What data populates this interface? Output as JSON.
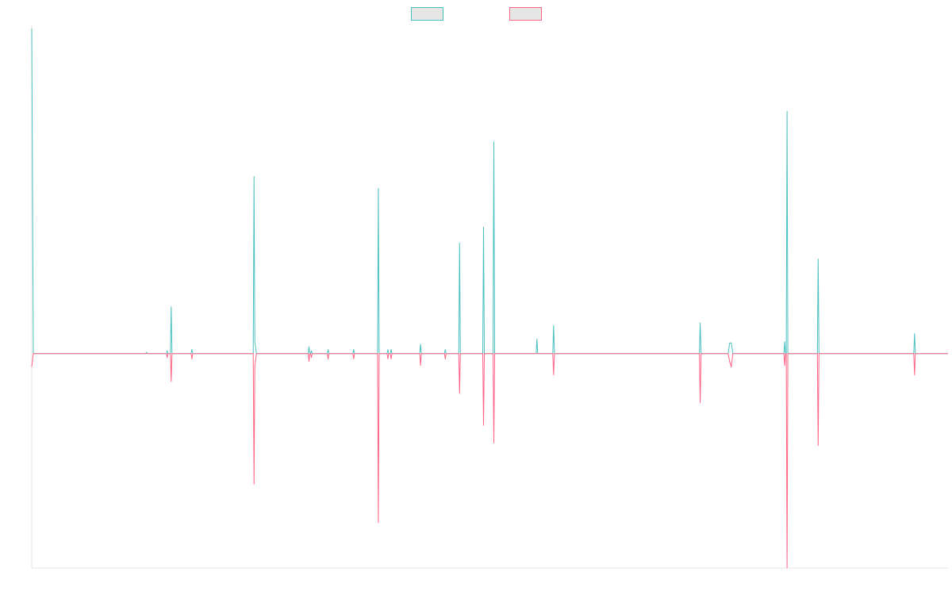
{
  "chart_data": {
    "type": "line",
    "title": "",
    "xlabel": "",
    "ylabel": "",
    "legend": {
      "placement": "top-center",
      "items": [
        {
          "name": "",
          "color": "#4bc0c0"
        },
        {
          "name": "",
          "color": "#ff6384"
        }
      ]
    },
    "grid": false,
    "x_range": [
      0,
      1150
    ],
    "ylim": [
      -160,
      245
    ],
    "colors": {
      "series_1": "#4bc0c0",
      "series_2": "#ff6384",
      "axis": "#e6e6e6",
      "legend_fill": "#e6e6e6"
    },
    "series": [
      {
        "name": "",
        "color": "#4bc0c0",
        "points": [
          [
            0,
            245
          ],
          [
            2,
            1
          ],
          [
            143,
            1
          ],
          [
            144,
            2
          ],
          [
            145,
            1
          ],
          [
            169,
            1
          ],
          [
            170,
            3
          ],
          [
            171,
            1
          ],
          [
            174,
            1
          ],
          [
            175,
            36
          ],
          [
            176,
            1
          ],
          [
            200,
            1
          ],
          [
            201,
            4
          ],
          [
            202,
            1
          ],
          [
            278,
            1
          ],
          [
            279,
            134
          ],
          [
            280,
            10
          ],
          [
            282,
            1
          ],
          [
            347,
            1
          ],
          [
            348,
            6
          ],
          [
            349,
            1
          ],
          [
            350,
            1
          ],
          [
            351,
            3
          ],
          [
            352,
            1
          ],
          [
            371,
            1
          ],
          [
            372,
            4
          ],
          [
            373,
            1
          ],
          [
            403,
            1
          ],
          [
            404,
            4
          ],
          [
            405,
            1
          ],
          [
            434,
            1
          ],
          [
            435,
            125
          ],
          [
            436,
            1
          ],
          [
            446,
            1
          ],
          [
            447,
            4
          ],
          [
            448,
            1
          ],
          [
            450,
            1
          ],
          [
            451,
            4
          ],
          [
            452,
            1
          ],
          [
            487,
            1
          ],
          [
            488,
            8
          ],
          [
            489,
            1
          ],
          [
            518,
            1
          ],
          [
            519,
            4
          ],
          [
            520,
            1
          ],
          [
            536,
            1
          ],
          [
            537,
            84
          ],
          [
            538,
            1
          ],
          [
            566,
            1
          ],
          [
            567,
            96
          ],
          [
            568,
            1
          ],
          [
            579,
            1
          ],
          [
            580,
            160
          ],
          [
            581,
            1
          ],
          [
            633,
            1
          ],
          [
            634,
            12
          ],
          [
            635,
            1
          ],
          [
            654,
            1
          ],
          [
            655,
            22
          ],
          [
            656,
            1
          ],
          [
            838,
            1
          ],
          [
            839,
            24
          ],
          [
            840,
            1
          ],
          [
            874,
            1
          ],
          [
            876,
            9
          ],
          [
            878,
            9
          ],
          [
            880,
            1
          ],
          [
            944,
            1
          ],
          [
            945,
            10
          ],
          [
            946,
            1
          ],
          [
            947,
            1
          ],
          [
            948,
            183
          ],
          [
            949,
            1
          ],
          [
            986,
            1
          ],
          [
            987,
            72
          ],
          [
            988,
            1
          ],
          [
            989,
            1
          ],
          [
            990,
            1
          ],
          [
            1107,
            1
          ],
          [
            1108,
            16
          ],
          [
            1109,
            1
          ],
          [
            1150,
            1
          ]
        ]
      },
      {
        "name": "",
        "color": "#ff6384",
        "points": [
          [
            0,
            -9
          ],
          [
            2,
            1
          ],
          [
            143,
            1
          ],
          [
            145,
            1
          ],
          [
            169,
            1
          ],
          [
            170,
            -2
          ],
          [
            171,
            1
          ],
          [
            174,
            1
          ],
          [
            175,
            -20
          ],
          [
            176,
            1
          ],
          [
            200,
            1
          ],
          [
            201,
            -3
          ],
          [
            202,
            1
          ],
          [
            278,
            1
          ],
          [
            279,
            -97
          ],
          [
            280,
            -8
          ],
          [
            282,
            1
          ],
          [
            347,
            1
          ],
          [
            348,
            -5
          ],
          [
            349,
            1
          ],
          [
            350,
            1
          ],
          [
            351,
            -2
          ],
          [
            352,
            1
          ],
          [
            371,
            1
          ],
          [
            372,
            -3
          ],
          [
            373,
            1
          ],
          [
            403,
            1
          ],
          [
            404,
            -3
          ],
          [
            405,
            1
          ],
          [
            434,
            1
          ],
          [
            435,
            -126
          ],
          [
            436,
            1
          ],
          [
            446,
            1
          ],
          [
            447,
            -3
          ],
          [
            448,
            1
          ],
          [
            450,
            1
          ],
          [
            451,
            -3
          ],
          [
            452,
            1
          ],
          [
            487,
            1
          ],
          [
            488,
            -8
          ],
          [
            489,
            1
          ],
          [
            518,
            1
          ],
          [
            519,
            -3
          ],
          [
            520,
            1
          ],
          [
            536,
            1
          ],
          [
            537,
            -29
          ],
          [
            538,
            1
          ],
          [
            566,
            1
          ],
          [
            567,
            -53
          ],
          [
            568,
            1
          ],
          [
            579,
            1
          ],
          [
            580,
            -66
          ],
          [
            581,
            1
          ],
          [
            633,
            1
          ],
          [
            635,
            1
          ],
          [
            654,
            1
          ],
          [
            655,
            -15
          ],
          [
            656,
            1
          ],
          [
            838,
            1
          ],
          [
            839,
            -36
          ],
          [
            840,
            1
          ],
          [
            874,
            1
          ],
          [
            876,
            -5
          ],
          [
            878,
            -9
          ],
          [
            880,
            1
          ],
          [
            944,
            1
          ],
          [
            945,
            -8
          ],
          [
            946,
            1
          ],
          [
            947,
            1
          ],
          [
            948,
            -160
          ],
          [
            949,
            1
          ],
          [
            986,
            1
          ],
          [
            987,
            -68
          ],
          [
            988,
            1
          ],
          [
            989,
            1
          ],
          [
            990,
            1
          ],
          [
            1107,
            1
          ],
          [
            1108,
            -15
          ],
          [
            1109,
            1
          ],
          [
            1150,
            1
          ]
        ]
      }
    ]
  }
}
